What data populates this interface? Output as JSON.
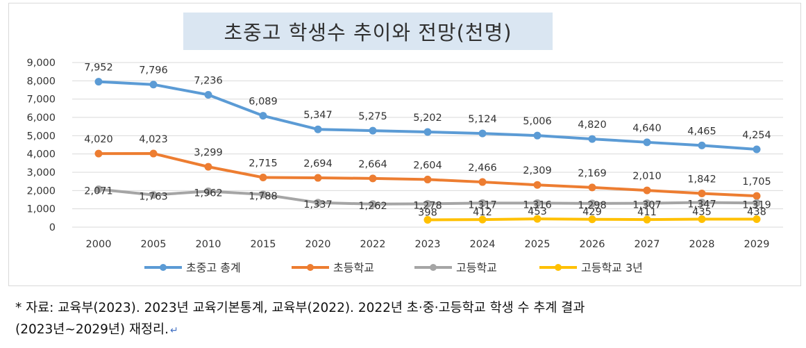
{
  "chart_data": {
    "type": "line",
    "title": "초중고 학생수 추이와 전망(천명)",
    "categories": [
      "2000",
      "2005",
      "2010",
      "2015",
      "2020",
      "2022",
      "2023",
      "2024",
      "2025",
      "2026",
      "2027",
      "2028",
      "2029"
    ],
    "yticks": [
      "0",
      "1,000",
      "2,000",
      "3,000",
      "4,000",
      "5,000",
      "6,000",
      "7,000",
      "8,000",
      "9,000"
    ],
    "ylim": [
      0,
      9000
    ],
    "grid": true,
    "legend_position": "bottom",
    "series": [
      {
        "name": "초중고 총계",
        "color": "#5b9bd5",
        "values": [
          7952,
          7796,
          7236,
          6089,
          5347,
          5275,
          5202,
          5124,
          5006,
          4820,
          4640,
          4465,
          4254
        ],
        "labels": [
          "7,952",
          "7,796",
          "7,236",
          "6,089",
          "5,347",
          "5,275",
          "5,202",
          "5,124",
          "5,006",
          "4,820",
          "4,640",
          "4,465",
          "4,254"
        ]
      },
      {
        "name": "초등학교",
        "color": "#ed7d31",
        "values": [
          4020,
          4023,
          3299,
          2715,
          2694,
          2664,
          2604,
          2466,
          2309,
          2169,
          2010,
          1842,
          1705
        ],
        "labels": [
          "4,020",
          "4,023",
          "3,299",
          "2,715",
          "2,694",
          "2,664",
          "2,604",
          "2,466",
          "2,309",
          "2,169",
          "2,010",
          "1,842",
          "1,705"
        ]
      },
      {
        "name": "고등학교",
        "color": "#a5a5a5",
        "values": [
          2071,
          1763,
          1962,
          1788,
          1337,
          1262,
          1278,
          1317,
          1316,
          1298,
          1307,
          1347,
          1319
        ],
        "labels": [
          "2,071",
          "1,763",
          "1,962",
          "1,788",
          "1,337",
          "1,262",
          "1,278",
          "1,317",
          "1,316",
          "1,298",
          "1,307",
          "1,347",
          "1,319"
        ]
      },
      {
        "name": "고등학교 3년",
        "color": "#ffc000",
        "values": [
          null,
          null,
          null,
          null,
          null,
          null,
          398,
          412,
          453,
          429,
          411,
          435,
          438
        ],
        "labels": [
          null,
          null,
          null,
          null,
          null,
          null,
          "398",
          "412",
          "453",
          "429",
          "411",
          "435",
          "438"
        ]
      }
    ]
  },
  "note": {
    "line1": "* 자료: 교육부(2023). 2023년 교육기본통계, 교육부(2022). 2022년 초·중·고등학교 학생 수 추계 결과",
    "line2": "(2023년~2029년) 재정리.",
    "return_mark": "↵"
  }
}
